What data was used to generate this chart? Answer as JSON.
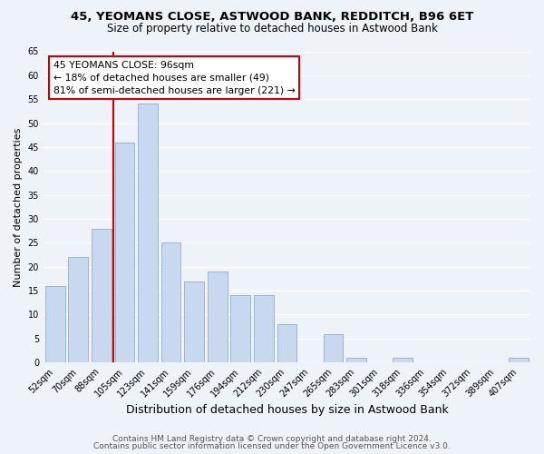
{
  "title": "45, YEOMANS CLOSE, ASTWOOD BANK, REDDITCH, B96 6ET",
  "subtitle": "Size of property relative to detached houses in Astwood Bank",
  "xlabel": "Distribution of detached houses by size in Astwood Bank",
  "ylabel": "Number of detached properties",
  "bar_labels": [
    "52sqm",
    "70sqm",
    "88sqm",
    "105sqm",
    "123sqm",
    "141sqm",
    "159sqm",
    "176sqm",
    "194sqm",
    "212sqm",
    "230sqm",
    "247sqm",
    "265sqm",
    "283sqm",
    "301sqm",
    "318sqm",
    "336sqm",
    "354sqm",
    "372sqm",
    "389sqm",
    "407sqm"
  ],
  "bar_values": [
    16,
    22,
    28,
    46,
    54,
    25,
    17,
    19,
    14,
    14,
    8,
    0,
    6,
    1,
    0,
    1,
    0,
    0,
    0,
    0,
    1
  ],
  "bar_color": "#c8d9ef",
  "bar_edge_color": "#9ab5d5",
  "vline_color": "#cc0000",
  "annotation_line1": "45 YEOMANS CLOSE: 96sqm",
  "annotation_line2": "← 18% of detached houses are smaller (49)",
  "annotation_line3": "81% of semi-detached houses are larger (221) →",
  "annotation_box_edge": "#cc0000",
  "ylim": [
    0,
    65
  ],
  "yticks": [
    0,
    5,
    10,
    15,
    20,
    25,
    30,
    35,
    40,
    45,
    50,
    55,
    60,
    65
  ],
  "footer1": "Contains HM Land Registry data © Crown copyright and database right 2024.",
  "footer2": "Contains public sector information licensed under the Open Government Licence v3.0.",
  "background_color": "#eef2f9",
  "grid_color": "#ffffff",
  "title_fontsize": 9.5,
  "subtitle_fontsize": 8.5,
  "xlabel_fontsize": 9,
  "ylabel_fontsize": 8,
  "tick_fontsize": 7,
  "footer_fontsize": 6.5,
  "annotation_fontsize": 7.8
}
